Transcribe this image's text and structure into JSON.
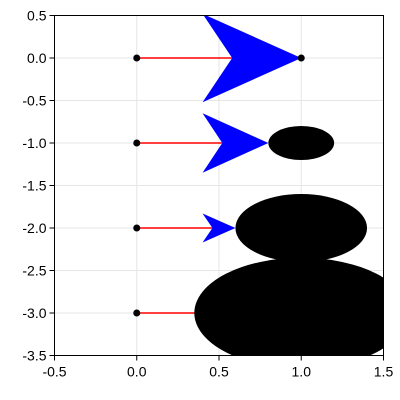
{
  "chart_data": {
    "type": "scatter",
    "title": "",
    "xlabel": "",
    "ylabel": "",
    "xlim": [
      -0.5,
      1.5
    ],
    "ylim": [
      -3.5,
      0.5
    ],
    "xticks": [
      -0.5,
      0.0,
      0.5,
      1.0,
      1.5
    ],
    "xtick_labels": [
      "-0.5",
      "0.0",
      "0.5",
      "1.0",
      "1.5"
    ],
    "yticks": [
      0.5,
      0.0,
      -0.5,
      -1.0,
      -1.5,
      -2.0,
      -2.5,
      -3.0,
      -3.5
    ],
    "ytick_labels": [
      "0.5",
      "0.0",
      "-0.5",
      "-1.0",
      "-1.5",
      "-2.0",
      "-2.5",
      "-3.0",
      "-3.5"
    ],
    "grid": true,
    "legend": "none",
    "colors": {
      "shaft": "#ff0000",
      "arrow_head": "#0000ff",
      "points": "#000000",
      "circles": "#000000",
      "grid": "#e6e6e6"
    },
    "start_points": [
      {
        "x": 0.0,
        "y": 0.0
      },
      {
        "x": 0.0,
        "y": -1.0
      },
      {
        "x": 0.0,
        "y": -2.0
      },
      {
        "x": 0.0,
        "y": -3.0
      }
    ],
    "arrows": [
      {
        "x0": 0.0,
        "y0": 0.0,
        "x1": 1.0,
        "y1": 0.0,
        "head_length": 0.6,
        "head_half_width": 0.52
      },
      {
        "x0": 0.0,
        "y0": -1.0,
        "x1": 0.8,
        "y1": -1.0,
        "head_length": 0.4,
        "head_half_width": 0.35
      },
      {
        "x0": 0.0,
        "y0": -2.0,
        "x1": 0.6,
        "y1": -2.0,
        "head_length": 0.2,
        "head_half_width": 0.17
      },
      {
        "x0": 0.0,
        "y0": -3.0,
        "x1": 0.4,
        "y1": -3.0,
        "head_length": 0.05,
        "head_half_width": 0.04
      }
    ],
    "end_points": [
      {
        "x": 1.0,
        "y": 0.0
      }
    ],
    "circles": [
      {
        "cx": 1.0,
        "cy": -1.0,
        "r": 0.2
      },
      {
        "cx": 1.0,
        "cy": -2.0,
        "r": 0.4
      },
      {
        "cx": 1.0,
        "cy": -3.0,
        "r": 0.65
      }
    ]
  }
}
